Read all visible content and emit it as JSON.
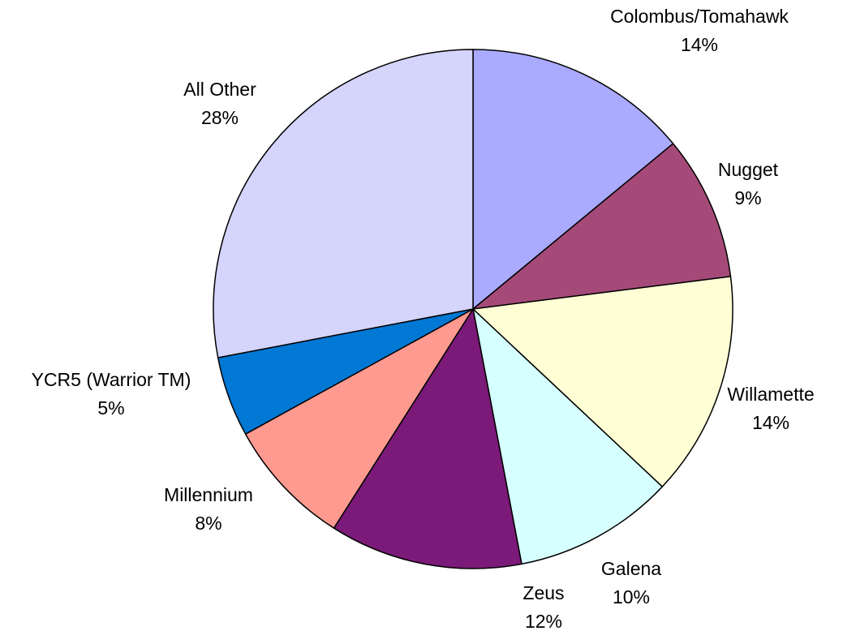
{
  "chart_data": {
    "type": "pie",
    "categories": [
      "Colombus/Tomahawk",
      "Nugget",
      "Willamette",
      "Galena",
      "Zeus",
      "Millennium",
      "YCR5 (Warrior TM)",
      "All Other"
    ],
    "values": [
      14,
      9,
      14,
      10,
      12,
      8,
      5,
      28
    ],
    "value_labels": [
      "14%",
      "9%",
      "14%",
      "10%",
      "12%",
      "8%",
      "5%",
      "28%"
    ],
    "colors": [
      "#aaaaff",
      "#a54a78",
      "#ffffd6",
      "#d6ffff",
      "#7b1a78",
      "#ff9a90",
      "#0078d4",
      "#d4d4fc"
    ]
  }
}
